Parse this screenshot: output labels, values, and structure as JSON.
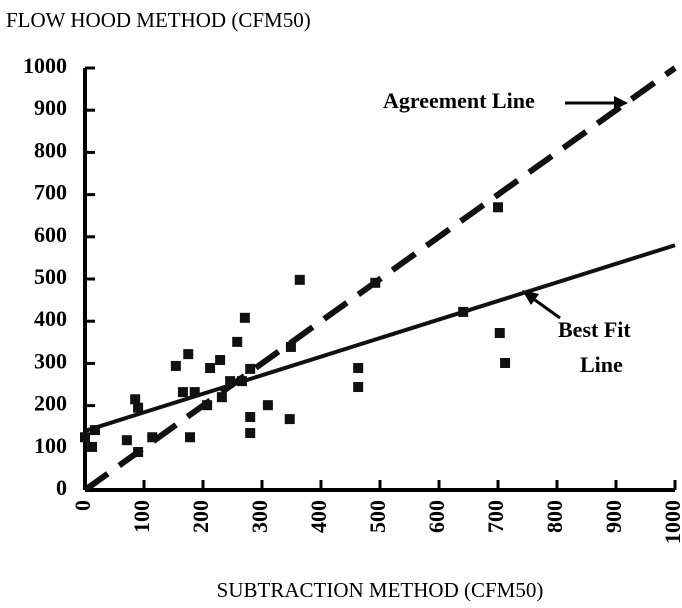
{
  "chart_data": {
    "type": "scatter",
    "title": "FLOW HOOD METHOD (CFM50)",
    "x_label": "SUBTRACTION METHOD (CFM50)",
    "xlim": [
      0,
      1000
    ],
    "ylim": [
      0,
      1000
    ],
    "xticks": [
      0,
      100,
      200,
      300,
      400,
      500,
      600,
      700,
      800,
      900,
      1000
    ],
    "yticks": [
      0,
      100,
      200,
      300,
      400,
      500,
      600,
      700,
      800,
      900,
      1000
    ],
    "color": "#111111",
    "x": [
      0,
      12,
      17,
      71,
      90,
      114,
      85,
      90,
      154,
      175,
      166,
      186,
      178,
      207,
      212,
      229,
      232,
      246,
      258,
      266,
      271,
      280,
      280,
      280,
      310,
      347,
      349,
      364,
      463,
      463,
      492,
      641,
      700,
      703,
      712
    ],
    "values": [
      125,
      102,
      142,
      118,
      90,
      125,
      215,
      195,
      294,
      322,
      232,
      232,
      125,
      201,
      289,
      308,
      220,
      258,
      351,
      258,
      408,
      287,
      173,
      135,
      201,
      168,
      339,
      498,
      289,
      244,
      491,
      422,
      670,
      372,
      301
    ],
    "lines": [
      {
        "name": "Agreement Line",
        "x": [
          0,
          1000
        ],
        "values": [
          0,
          1000
        ],
        "dashed": true
      },
      {
        "name": "Best Fit Line",
        "label_lines": [
          "Best  Fit",
          "Line"
        ],
        "x": [
          0,
          1000
        ],
        "values": [
          140,
          580
        ],
        "dashed": false
      }
    ]
  }
}
